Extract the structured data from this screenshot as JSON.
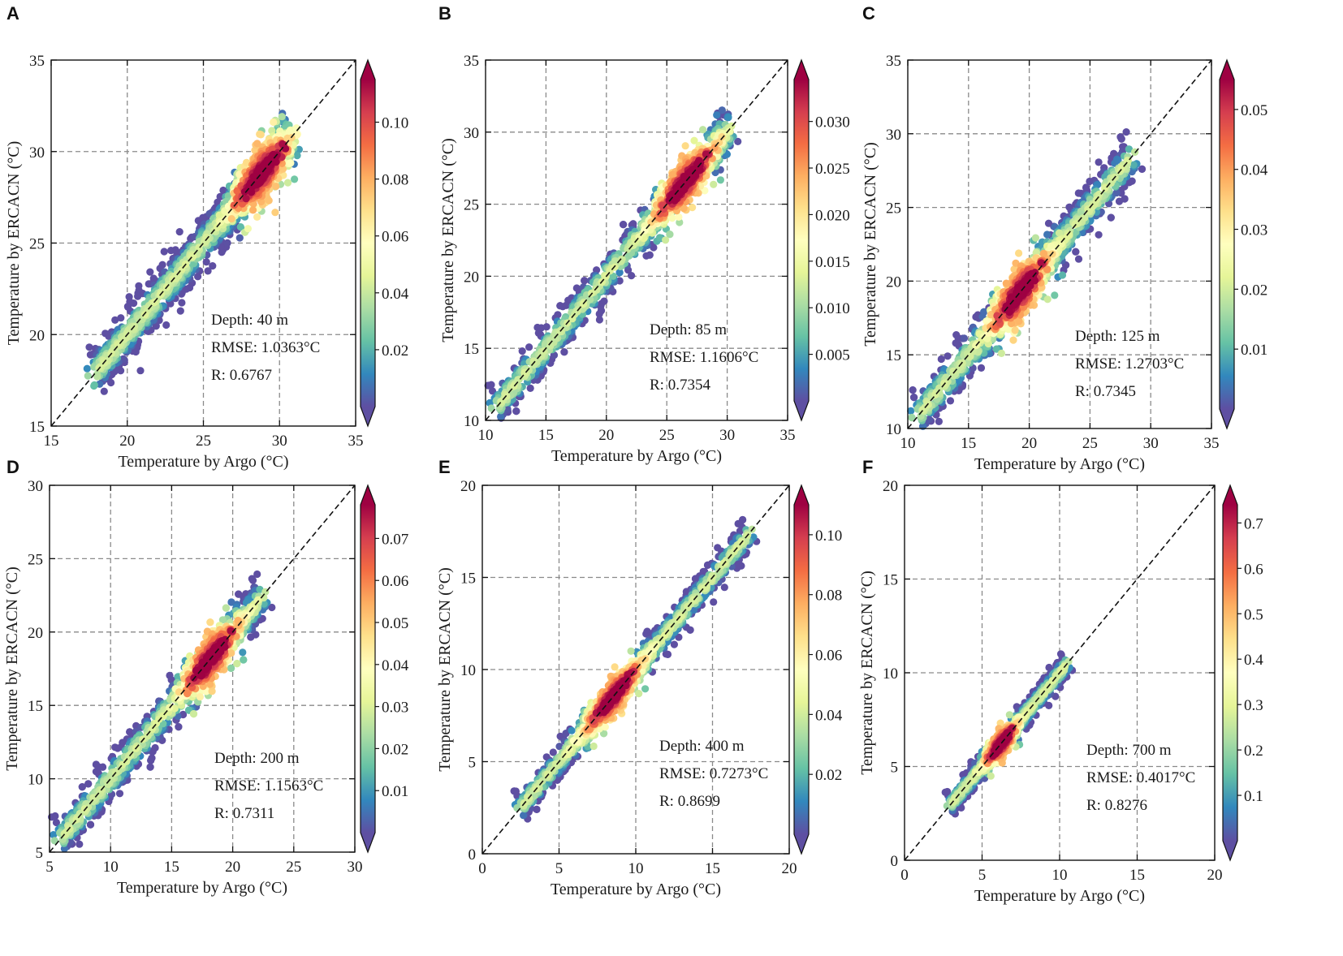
{
  "colormap": [
    "#5e4fa2",
    "#3288bd",
    "#66c2a5",
    "#abdda4",
    "#e6f598",
    "#ffffbf",
    "#fee08b",
    "#fdae61",
    "#f46d43",
    "#d53e4f",
    "#9e0142"
  ],
  "chart_data": [
    {
      "type": "scatter",
      "panel": "A",
      "xlabel": "Temperature by Argo (°C)",
      "ylabel": "Temperature by ERCACN (°C)",
      "xlim": [
        15,
        35
      ],
      "ylim": [
        15,
        35
      ],
      "xticks": [
        15,
        20,
        25,
        30,
        35
      ],
      "yticks": [
        15,
        20,
        25,
        30,
        35
      ],
      "colorbar_ticks": [
        0.02,
        0.04,
        0.06,
        0.08,
        0.1
      ],
      "colorbar_tick_labels": [
        "0.02",
        "0.04",
        "0.06",
        "0.08",
        "0.10"
      ],
      "colorbar_range": [
        0.0,
        0.115
      ],
      "annotations": [
        "Depth: 40 m",
        "RMSE: 1.0363°C",
        "R: 0.6767"
      ],
      "data_range": [
        18,
        30.5
      ],
      "spread": 0.9,
      "peak": 28.8,
      "n_points": 1500
    },
    {
      "type": "scatter",
      "panel": "B",
      "xlabel": "Temperature by Argo (°C)",
      "ylabel": "Temperature by ERCACN (°C)",
      "xlim": [
        10,
        35
      ],
      "ylim": [
        10,
        35
      ],
      "xticks": [
        10,
        15,
        20,
        25,
        30,
        35
      ],
      "yticks": [
        10,
        15,
        20,
        25,
        30,
        35
      ],
      "colorbar_ticks": [
        0.005,
        0.01,
        0.015,
        0.02,
        0.025,
        0.03
      ],
      "colorbar_tick_labels": [
        "0.005",
        "0.010",
        "0.015",
        "0.020",
        "0.025",
        "0.030"
      ],
      "colorbar_range": [
        0.0,
        0.0345
      ],
      "annotations": [
        "Depth: 85 m",
        "RMSE: 1.1606°C",
        "R: 0.7354"
      ],
      "data_range": [
        11,
        30.2
      ],
      "spread": 1.0,
      "peak": 26.5,
      "n_points": 1500
    },
    {
      "type": "scatter",
      "panel": "C",
      "xlabel": "Temperature by Argo (°C)",
      "ylabel": "Temperature by ERCACN (°C)",
      "xlim": [
        10,
        35
      ],
      "ylim": [
        10,
        35
      ],
      "xticks": [
        10,
        15,
        20,
        25,
        30,
        35
      ],
      "yticks": [
        10,
        15,
        20,
        25,
        30,
        35
      ],
      "colorbar_ticks": [
        0.01,
        0.02,
        0.03,
        0.04,
        0.05
      ],
      "colorbar_tick_labels": [
        "0.01",
        "0.02",
        "0.03",
        "0.04",
        "0.05"
      ],
      "colorbar_range": [
        0.0,
        0.055
      ],
      "annotations": [
        "Depth: 125 m",
        "RMSE: 1.2703°C",
        "R: 0.7345"
      ],
      "data_range": [
        11,
        28.5
      ],
      "spread": 1.1,
      "peak": 19.2,
      "n_points": 1500
    },
    {
      "type": "scatter",
      "panel": "D",
      "xlabel": "Temperature by Argo (°C)",
      "ylabel": "Temperature by ERCACN (°C)",
      "xlim": [
        5,
        30
      ],
      "ylim": [
        5,
        30
      ],
      "xticks": [
        5,
        10,
        15,
        20,
        25,
        30
      ],
      "yticks": [
        5,
        10,
        15,
        20,
        25,
        30
      ],
      "colorbar_ticks": [
        0.01,
        0.02,
        0.03,
        0.04,
        0.05,
        0.06,
        0.07
      ],
      "colorbar_tick_labels": [
        "0.01",
        "0.02",
        "0.03",
        "0.04",
        "0.05",
        "0.06",
        "0.07"
      ],
      "colorbar_range": [
        0.0,
        0.078
      ],
      "annotations": [
        "Depth: 200 m",
        "RMSE: 1.1563°C",
        "R: 0.7311"
      ],
      "data_range": [
        6,
        22.5
      ],
      "spread": 1.0,
      "peak": 18.2,
      "n_points": 1500
    },
    {
      "type": "scatter",
      "panel": "E",
      "xlabel": "Temperature by Argo (°C)",
      "ylabel": "Temperature by ERCACN (°C)",
      "xlim": [
        0,
        20
      ],
      "ylim": [
        0,
        20
      ],
      "xticks": [
        0,
        5,
        10,
        15,
        20
      ],
      "yticks": [
        0,
        5,
        10,
        15,
        20
      ],
      "colorbar_ticks": [
        0.02,
        0.04,
        0.06,
        0.08,
        0.1
      ],
      "colorbar_tick_labels": [
        "0.02",
        "0.04",
        "0.06",
        "0.08",
        "0.10"
      ],
      "colorbar_range": [
        0.0,
        0.11
      ],
      "annotations": [
        "Depth: 400 m",
        "RMSE: 0.7273°C",
        "R: 0.8699"
      ],
      "data_range": [
        2.5,
        17.5
      ],
      "spread": 0.6,
      "peak": 8.5,
      "n_points": 1500
    },
    {
      "type": "scatter",
      "panel": "F",
      "xlabel": "Temperature by Argo (°C)",
      "ylabel": "Temperature by ERCACN (°C)",
      "xlim": [
        0,
        20
      ],
      "ylim": [
        0,
        20
      ],
      "xticks": [
        0,
        5,
        10,
        15,
        20
      ],
      "yticks": [
        0,
        5,
        10,
        15,
        20
      ],
      "colorbar_ticks": [
        0.1,
        0.2,
        0.3,
        0.4,
        0.5,
        0.6,
        0.7
      ],
      "colorbar_tick_labels": [
        "0.1",
        "0.2",
        "0.3",
        "0.4",
        "0.5",
        "0.6",
        "0.7"
      ],
      "colorbar_range": [
        0.0,
        0.74
      ],
      "annotations": [
        "Depth: 700 m",
        "RMSE: 0.4017°C",
        "R: 0.8276"
      ],
      "data_range": [
        3,
        10.5
      ],
      "spread": 0.45,
      "peak": 6.2,
      "n_points": 900
    }
  ]
}
